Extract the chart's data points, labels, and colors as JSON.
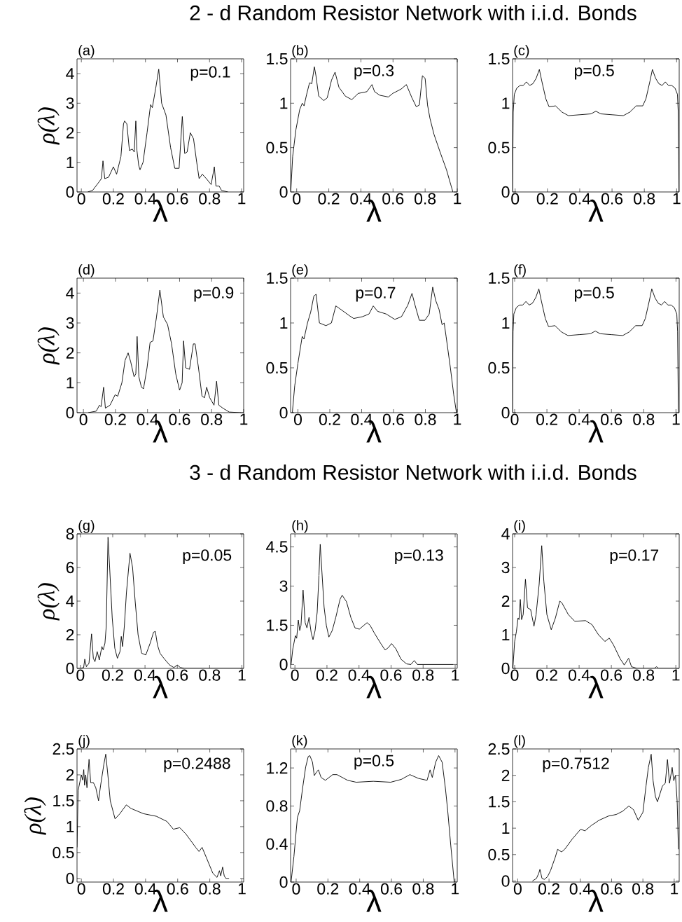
{
  "chart_data": [
    {
      "type": "line",
      "title": "2 - d Random Resistor Network with i.i.d. Bonds",
      "annotations": [
        "(a)",
        "p=0.1"
      ],
      "xlabel": "λ",
      "ylabel": "ρ(λ)",
      "xlim": [
        -0.027,
        1.013
      ],
      "ylim": [
        0,
        4.5
      ],
      "xticks": [
        0,
        0.2,
        0.4,
        0.6,
        0.8,
        1
      ],
      "yticks": [
        0,
        1,
        2,
        3,
        4
      ],
      "color": "#000000",
      "x": [
        0.04,
        0.07,
        0.105,
        0.125,
        0.135,
        0.146,
        0.17,
        0.2,
        0.22,
        0.247,
        0.263,
        0.27,
        0.284,
        0.3,
        0.318,
        0.33,
        0.34,
        0.347,
        0.358,
        0.366,
        0.385,
        0.41,
        0.432,
        0.443,
        0.464,
        0.483,
        0.501,
        0.528,
        0.557,
        0.583,
        0.61,
        0.63,
        0.645,
        0.66,
        0.68,
        0.7,
        0.72,
        0.735,
        0.755,
        0.78,
        0.81,
        0.83,
        0.84,
        0.86,
        0.875,
        0.915
      ],
      "values": [
        0,
        0.05,
        0.3,
        0.45,
        1.05,
        0.45,
        0.5,
        0.85,
        0.6,
        1.2,
        2.3,
        2.4,
        2.3,
        1.4,
        1.45,
        1.35,
        2.4,
        1.4,
        0.9,
        0.75,
        1.0,
        2.0,
        2.95,
        2.85,
        3.5,
        4.15,
        3.0,
        2.6,
        1.5,
        0.8,
        0.8,
        2.55,
        1.3,
        1.35,
        2.0,
        1.8,
        1.0,
        0.45,
        0.6,
        0.45,
        0.25,
        0.85,
        0.2,
        0.2,
        0.05,
        0
      ]
    },
    {
      "type": "line",
      "annotations": [
        "(b)",
        "p=0.3"
      ],
      "xlabel": "λ",
      "xlim": [
        -0.038,
        1.0
      ],
      "ylim": [
        0,
        1.5
      ],
      "xticks": [
        0,
        0.2,
        0.4,
        0.6,
        0.8,
        1
      ],
      "yticks": [
        0,
        0.5,
        1,
        1.5
      ],
      "color": "#000000",
      "x": [
        -0.037,
        -0.025,
        -0.005,
        0.019,
        0.035,
        0.046,
        0.062,
        0.08,
        0.094,
        0.11,
        0.12,
        0.137,
        0.169,
        0.19,
        0.217,
        0.239,
        0.263,
        0.303,
        0.343,
        0.383,
        0.437,
        0.469,
        0.485,
        0.517,
        0.571,
        0.598,
        0.651,
        0.683,
        0.718,
        0.745,
        0.764,
        0.783,
        0.8,
        0.815,
        0.83,
        0.855,
        0.893,
        0.933,
        0.96,
        0.973
      ],
      "values": [
        0,
        0.4,
        0.7,
        0.93,
        1.0,
        0.97,
        1.1,
        1.23,
        1.22,
        1.41,
        1.31,
        1.08,
        1.03,
        1.06,
        1.26,
        1.35,
        1.18,
        1.08,
        1.04,
        1.11,
        1.13,
        1.21,
        1.13,
        1.09,
        1.07,
        1.11,
        1.16,
        1.21,
        1.06,
        0.96,
        0.98,
        1.31,
        1.28,
        0.98,
        0.83,
        0.65,
        0.45,
        0.25,
        0.08,
        0
      ]
    },
    {
      "type": "line",
      "annotations": [
        "(c)",
        "p=0.5"
      ],
      "xlabel": "λ",
      "xlim": [
        -0.016,
        1.016
      ],
      "ylim": [
        0,
        1.5
      ],
      "xticks": [
        0,
        0.2,
        0.4,
        0.6,
        0.8,
        1
      ],
      "yticks": [
        0,
        0.5,
        1,
        1.5
      ],
      "color": "#000000",
      "x": [
        -0.016,
        -0.012,
        -0.005,
        0.01,
        0.03,
        0.05,
        0.07,
        0.09,
        0.11,
        0.13,
        0.15,
        0.165,
        0.19,
        0.21,
        0.25,
        0.29,
        0.33,
        0.4,
        0.47,
        0.5,
        0.53,
        0.6,
        0.67,
        0.71,
        0.75,
        0.79,
        0.81,
        0.835,
        0.85,
        0.87,
        0.89,
        0.91,
        0.93,
        0.95,
        0.97,
        0.99,
        1.005,
        1.01,
        1.015
      ],
      "values": [
        0,
        0.9,
        1.1,
        1.17,
        1.2,
        1.2,
        1.24,
        1.2,
        1.22,
        1.28,
        1.38,
        1.25,
        1.05,
        0.96,
        0.97,
        0.9,
        0.86,
        0.87,
        0.88,
        0.91,
        0.88,
        0.87,
        0.86,
        0.9,
        0.97,
        0.97,
        1.05,
        1.25,
        1.38,
        1.28,
        1.22,
        1.2,
        1.24,
        1.2,
        1.2,
        1.17,
        1.1,
        0.9,
        0
      ]
    },
    {
      "type": "line",
      "annotations": [
        "(d)",
        "p=0.9"
      ],
      "xlabel": "λ",
      "ylabel": "ρ(λ)",
      "xlim": [
        -0.04,
        1.0
      ],
      "ylim": [
        0,
        4.5
      ],
      "xticks": [
        0,
        0.2,
        0.4,
        0.6,
        0.8,
        1
      ],
      "yticks": [
        0,
        1,
        2,
        3,
        4
      ],
      "color": "#000000",
      "x": [
        0.03,
        0.08,
        0.1,
        0.11,
        0.126,
        0.137,
        0.166,
        0.198,
        0.214,
        0.24,
        0.26,
        0.279,
        0.295,
        0.316,
        0.327,
        0.335,
        0.346,
        0.362,
        0.375,
        0.397,
        0.416,
        0.434,
        0.456,
        0.477,
        0.499,
        0.525,
        0.55,
        0.576,
        0.6,
        0.616,
        0.625,
        0.638,
        0.662,
        0.686,
        0.697,
        0.718,
        0.74,
        0.756,
        0.769,
        0.788,
        0.815,
        0.831,
        0.845,
        0.87,
        0.91,
        0.98
      ],
      "values": [
        0,
        0.05,
        0.25,
        0.2,
        0.85,
        0.15,
        0.25,
        0.6,
        0.55,
        1.0,
        1.75,
        2.0,
        1.7,
        1.2,
        1.3,
        2.55,
        1.2,
        0.85,
        0.8,
        1.5,
        2.35,
        2.4,
        3.2,
        4.1,
        3.2,
        2.95,
        2.3,
        1.3,
        0.75,
        1.0,
        2.4,
        1.5,
        1.45,
        2.3,
        2.3,
        1.5,
        0.55,
        0.5,
        0.85,
        0.5,
        0.25,
        1.05,
        0.25,
        0.15,
        0.02,
        0
      ]
    },
    {
      "type": "line",
      "annotations": [
        "(e)",
        "p=0.7"
      ],
      "xlabel": "λ",
      "xlim": [
        -0.046,
        1.0
      ],
      "ylim": [
        0,
        1.5
      ],
      "xticks": [
        0,
        0.2,
        0.4,
        0.6,
        0.8,
        1
      ],
      "yticks": [
        0,
        0.5,
        1,
        1.5
      ],
      "color": "#000000",
      "x": [
        -0.035,
        -0.02,
        0.0,
        0.027,
        0.038,
        0.06,
        0.08,
        0.1,
        0.114,
        0.135,
        0.176,
        0.21,
        0.238,
        0.27,
        0.324,
        0.35,
        0.405,
        0.446,
        0.473,
        0.5,
        0.554,
        0.608,
        0.65,
        0.69,
        0.716,
        0.735,
        0.762,
        0.797,
        0.824,
        0.846,
        0.865,
        0.886,
        0.905,
        0.918,
        0.93,
        0.957,
        0.978,
        0.995
      ],
      "values": [
        0,
        0.3,
        0.55,
        0.85,
        0.82,
        1.0,
        1.12,
        1.3,
        1.32,
        1.0,
        0.97,
        1.0,
        1.19,
        1.15,
        1.08,
        1.05,
        1.07,
        1.1,
        1.19,
        1.13,
        1.1,
        1.04,
        1.07,
        1.2,
        1.33,
        1.2,
        1.03,
        1.03,
        1.1,
        1.4,
        1.25,
        1.15,
        0.98,
        1.0,
        0.85,
        0.5,
        0.2,
        0
      ]
    },
    {
      "type": "line",
      "annotations": [
        "(f)",
        "p=0.5"
      ],
      "xlabel": "λ",
      "xlim": [
        -0.013,
        1.02
      ],
      "ylim": [
        0,
        1.5
      ],
      "xticks": [
        0,
        0.2,
        0.4,
        0.6,
        0.8,
        1
      ],
      "yticks": [
        0,
        0.5,
        1,
        1.5
      ],
      "color": "#000000",
      "x": [
        -0.013,
        -0.01,
        -0.005,
        0.01,
        0.03,
        0.05,
        0.07,
        0.09,
        0.11,
        0.13,
        0.15,
        0.165,
        0.19,
        0.21,
        0.25,
        0.29,
        0.33,
        0.4,
        0.47,
        0.5,
        0.53,
        0.6,
        0.67,
        0.71,
        0.75,
        0.79,
        0.81,
        0.835,
        0.85,
        0.87,
        0.89,
        0.91,
        0.93,
        0.95,
        0.97,
        0.99,
        1.005,
        1.01,
        1.015
      ],
      "values": [
        0,
        0.9,
        1.1,
        1.17,
        1.2,
        1.2,
        1.24,
        1.2,
        1.22,
        1.28,
        1.38,
        1.25,
        1.05,
        0.96,
        0.97,
        0.9,
        0.86,
        0.87,
        0.88,
        0.91,
        0.88,
        0.87,
        0.86,
        0.9,
        0.97,
        0.97,
        1.05,
        1.25,
        1.38,
        1.28,
        1.22,
        1.2,
        1.24,
        1.2,
        1.2,
        1.17,
        1.1,
        0.9,
        0
      ]
    },
    {
      "type": "line",
      "title": "3 - d Random Resistor Network with i.i.d. Bonds",
      "annotations": [
        "(g)",
        "p=0.05"
      ],
      "xlabel": "λ",
      "ylabel": "ρ(λ)",
      "xlim": [
        -0.021,
        1.011
      ],
      "ylim": [
        0,
        8
      ],
      "xticks": [
        0,
        0.2,
        0.4,
        0.6,
        0.8,
        1
      ],
      "yticks": [
        0,
        2,
        4,
        6,
        8
      ],
      "color": "#000000",
      "x": [
        0.0,
        0.02,
        0.027,
        0.037,
        0.053,
        0.069,
        0.08,
        0.09,
        0.104,
        0.117,
        0.133,
        0.141,
        0.152,
        0.16,
        0.171,
        0.181,
        0.197,
        0.213,
        0.229,
        0.245,
        0.253,
        0.261,
        0.272,
        0.285,
        0.307,
        0.323,
        0.339,
        0.357,
        0.379,
        0.405,
        0.432,
        0.453,
        0.464,
        0.477,
        0.493,
        0.517,
        0.552,
        0.579,
        0.6,
        0.619,
        0.645,
        0.99
      ],
      "values": [
        0,
        0.05,
        0.55,
        0.1,
        0.3,
        2.05,
        0.6,
        0.4,
        1.0,
        0.5,
        1.3,
        1.1,
        1.5,
        2.5,
        7.8,
        6.0,
        3.0,
        1.2,
        0.6,
        1.0,
        1.9,
        1.3,
        2.5,
        4.5,
        6.85,
        6.0,
        4.0,
        2.0,
        0.9,
        0.8,
        1.5,
        2.15,
        2.2,
        1.4,
        0.9,
        0.6,
        0.2,
        0.05,
        0.2,
        0.05,
        0,
        0
      ]
    },
    {
      "type": "line",
      "annotations": [
        "(h)",
        "p=0.13"
      ],
      "xlabel": "λ",
      "xlim": [
        -0.027,
        1.013
      ],
      "ylim": [
        -0.15,
        5
      ],
      "xticks": [
        0,
        0.2,
        0.4,
        0.6,
        0.8,
        1
      ],
      "yticks": [
        0,
        1.5,
        3,
        4.5
      ],
      "color": "#000000",
      "x": [
        -0.024,
        -0.013,
        0.003,
        0.011,
        0.021,
        0.03,
        0.038,
        0.051,
        0.064,
        0.075,
        0.088,
        0.102,
        0.113,
        0.126,
        0.139,
        0.15,
        0.158,
        0.169,
        0.182,
        0.196,
        0.212,
        0.233,
        0.255,
        0.282,
        0.295,
        0.322,
        0.349,
        0.375,
        0.402,
        0.45,
        0.469,
        0.496,
        0.536,
        0.563,
        0.584,
        0.603,
        0.63,
        0.662,
        0.697,
        0.724,
        0.745,
        0.764,
        0.99
      ],
      "values": [
        0,
        0.6,
        1.1,
        1.0,
        1.7,
        1.3,
        1.5,
        2.85,
        1.6,
        1.4,
        1.8,
        1.2,
        0.95,
        1.3,
        2.0,
        3.4,
        4.6,
        3.5,
        2.2,
        1.5,
        1.05,
        1.3,
        1.8,
        2.5,
        2.65,
        2.4,
        1.8,
        1.4,
        1.35,
        1.6,
        1.5,
        1.2,
        0.8,
        0.55,
        0.65,
        0.8,
        0.6,
        0.2,
        0.02,
        0,
        0.15,
        0,
        0
      ]
    },
    {
      "type": "line",
      "annotations": [
        "(i)",
        "p=0.17"
      ],
      "xlabel": "λ",
      "xlim": [
        -0.013,
        1.021
      ],
      "ylim": [
        0,
        4
      ],
      "xticks": [
        0,
        0.2,
        0.4,
        0.6,
        0.8,
        1
      ],
      "yticks": [
        0,
        1,
        2,
        3,
        4
      ],
      "color": "#000000",
      "x": [
        -0.011,
        0.0,
        0.011,
        0.021,
        0.027,
        0.035,
        0.043,
        0.053,
        0.067,
        0.08,
        0.099,
        0.12,
        0.133,
        0.152,
        0.168,
        0.181,
        0.2,
        0.227,
        0.253,
        0.28,
        0.293,
        0.333,
        0.373,
        0.44,
        0.48,
        0.52,
        0.56,
        0.587,
        0.613,
        0.653,
        0.68,
        0.707,
        0.725,
        0.76,
        0.867,
        0.88,
        0.893,
        1.0
      ],
      "values": [
        0,
        0.8,
        1.1,
        1.5,
        1.45,
        2.05,
        1.45,
        1.6,
        2.65,
        1.8,
        1.75,
        1.25,
        1.6,
        2.5,
        3.65,
        2.6,
        1.6,
        1.15,
        1.5,
        2.0,
        1.95,
        1.6,
        1.4,
        1.42,
        1.3,
        1.0,
        0.8,
        0.9,
        0.7,
        0.3,
        0.1,
        0.3,
        0.05,
        0,
        0,
        0.05,
        0,
        0
      ]
    },
    {
      "type": "line",
      "annotations": [
        "(j)",
        "p=0.2488"
      ],
      "xlabel": "λ",
      "ylabel": "ρ(λ)",
      "xlim": [
        -0.027,
        1.011
      ],
      "ylim": [
        -0.07,
        2.5
      ],
      "xticks": [
        0,
        0.2,
        0.4,
        0.6,
        0.8,
        1
      ],
      "yticks": [
        0,
        0.5,
        1,
        1.5,
        2,
        2.5
      ],
      "color": "#000000",
      "x": [
        -0.027,
        -0.02,
        -0.01,
        0.0,
        0.008,
        0.015,
        0.02,
        0.027,
        0.035,
        0.048,
        0.058,
        0.075,
        0.09,
        0.107,
        0.12,
        0.14,
        0.152,
        0.165,
        0.18,
        0.21,
        0.24,
        0.28,
        0.31,
        0.387,
        0.467,
        0.533,
        0.573,
        0.613,
        0.653,
        0.712,
        0.733,
        0.752,
        0.779,
        0.819,
        0.845,
        0.86,
        0.868,
        0.88,
        0.89,
        0.9,
        0.92
      ],
      "values": [
        0.6,
        1.7,
        1.85,
        2.0,
        1.9,
        2.1,
        1.8,
        2.0,
        1.75,
        2.3,
        1.85,
        1.85,
        1.75,
        1.5,
        1.8,
        2.2,
        2.4,
        2.0,
        1.5,
        1.15,
        1.25,
        1.42,
        1.35,
        1.25,
        1.2,
        1.1,
        0.95,
        0.98,
        0.85,
        0.6,
        0.52,
        0.6,
        0.4,
        0.1,
        0.02,
        0.15,
        0.05,
        0.22,
        0.05,
        0,
        0
      ]
    },
    {
      "type": "line",
      "annotations": [
        "(k)",
        "p=0.5"
      ],
      "xlabel": "λ",
      "xlim": [
        -0.035,
        1.014
      ],
      "ylim": [
        0,
        1.4
      ],
      "xticks": [
        0,
        0.2,
        0.4,
        0.6,
        0.8,
        1
      ],
      "yticks": [
        0,
        0.4,
        0.8,
        1.2
      ],
      "color": "#000000",
      "x": [
        -0.032,
        -0.014,
        0.008,
        0.022,
        0.04,
        0.06,
        0.076,
        0.086,
        0.103,
        0.114,
        0.13,
        0.14,
        0.157,
        0.184,
        0.23,
        0.257,
        0.324,
        0.378,
        0.486,
        0.595,
        0.662,
        0.716,
        0.77,
        0.824,
        0.843,
        0.857,
        0.878,
        0.897,
        0.919,
        0.94,
        0.954,
        0.973,
        0.995
      ],
      "values": [
        0,
        0.27,
        0.68,
        0.75,
        0.98,
        1.21,
        1.32,
        1.33,
        1.26,
        1.12,
        1.16,
        1.18,
        1.1,
        1.07,
        1.13,
        1.13,
        1.07,
        1.05,
        1.06,
        1.05,
        1.08,
        1.13,
        1.09,
        1.07,
        1.18,
        1.1,
        1.26,
        1.33,
        1.26,
        0.98,
        0.75,
        0.39,
        0
      ]
    },
    {
      "type": "line",
      "annotations": [
        "(l)",
        "p=0.7512"
      ],
      "xlabel": "λ",
      "xlim": [
        -0.033,
        1.032
      ],
      "ylim": [
        -0.02,
        2.5
      ],
      "xticks": [
        0,
        0.2,
        0.4,
        0.6,
        0.8,
        1
      ],
      "yticks": [
        0,
        0.5,
        1,
        1.5,
        2,
        2.5
      ],
      "color": "#000000",
      "x": [
        0.094,
        0.12,
        0.135,
        0.142,
        0.155,
        0.17,
        0.19,
        0.21,
        0.24,
        0.255,
        0.28,
        0.3,
        0.35,
        0.402,
        0.43,
        0.47,
        0.52,
        0.58,
        0.63,
        0.67,
        0.71,
        0.74,
        0.77,
        0.8,
        0.82,
        0.835,
        0.853,
        0.865,
        0.88,
        0.893,
        0.925,
        0.943,
        0.957,
        0.97,
        0.987,
        0.997,
        1.008,
        1.019,
        1.027
      ],
      "values": [
        0,
        0.05,
        0.15,
        0.22,
        0.05,
        0.03,
        0.08,
        0.2,
        0.45,
        0.6,
        0.55,
        0.6,
        0.8,
        0.98,
        0.95,
        1.05,
        1.15,
        1.23,
        1.26,
        1.32,
        1.42,
        1.35,
        1.15,
        1.3,
        1.8,
        2.15,
        2.4,
        1.9,
        1.6,
        1.5,
        1.8,
        1.85,
        2.3,
        1.85,
        2.15,
        1.9,
        2.0,
        1.5,
        0.6
      ]
    }
  ]
}
